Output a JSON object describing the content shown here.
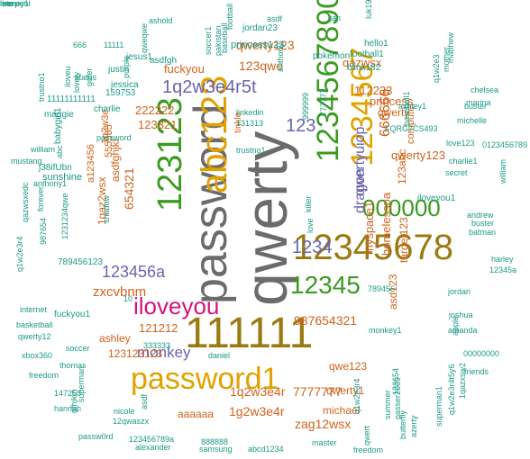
{
  "palette": {
    "gray": "#6b6b6b",
    "gold": "#e1a200",
    "green": "#3a9b20",
    "olive": "#9a7a12",
    "purple": "#6b63b0",
    "orange": "#d2621a",
    "teal": "#1a9a86",
    "magenta": "#d5137a",
    "blue": "#2e64b0"
  },
  "words": [
    {
      "t": "qwerty",
      "c": "gray"
    },
    {
      "t": "password",
      "c": "gray"
    },
    {
      "t": "111111",
      "c": "olive"
    },
    {
      "t": "12345678",
      "c": "olive"
    },
    {
      "t": "1234567890",
      "c": "green"
    },
    {
      "t": "1234567",
      "c": "gold"
    },
    {
      "t": "abc123",
      "c": "gold"
    },
    {
      "t": "123123",
      "c": "green"
    },
    {
      "t": "password1",
      "c": "gold"
    },
    {
      "t": "iloveyou",
      "c": "magenta"
    },
    {
      "t": "000000",
      "c": "green"
    },
    {
      "t": "12345",
      "c": "green"
    },
    {
      "t": "1q2w3e4r5t",
      "c": "purple"
    },
    {
      "t": "qwertyuiop",
      "c": "purple"
    },
    {
      "t": "123456a",
      "c": "purple"
    },
    {
      "t": "1234",
      "c": "purple"
    },
    {
      "t": "123",
      "c": "purple"
    },
    {
      "t": "monkey",
      "c": "purple"
    },
    {
      "t": "dragon",
      "c": "purple"
    },
    {
      "t": "qwerty123",
      "c": "orange"
    },
    {
      "t": "123qwe",
      "c": "orange"
    },
    {
      "t": "fuckyou",
      "c": "orange"
    },
    {
      "t": "qazwsx",
      "c": "orange"
    },
    {
      "t": "222222",
      "c": "orange"
    },
    {
      "t": "123321",
      "c": "orange"
    },
    {
      "t": "654321",
      "c": "orange"
    },
    {
      "t": "zxcvbnm",
      "c": "orange"
    },
    {
      "t": "987654321",
      "c": "orange"
    },
    {
      "t": "121212",
      "c": "orange"
    },
    {
      "t": "1q2w3e4r",
      "c": "orange"
    },
    {
      "t": "1g2w3e4r",
      "c": "orange"
    },
    {
      "t": "7777777",
      "c": "orange"
    },
    {
      "t": "aaaaaa",
      "c": "orange"
    },
    {
      "t": "zag12wsx",
      "c": "orange"
    },
    {
      "t": "qwe123",
      "c": "orange"
    },
    {
      "t": "qwerty1",
      "c": "orange"
    },
    {
      "t": "michael",
      "c": "orange"
    },
    {
      "t": "123123123",
      "c": "orange"
    },
    {
      "t": "ashley",
      "c": "orange"
    },
    {
      "t": "myspace1",
      "c": "orange"
    },
    {
      "t": "homelesspa",
      "c": "orange"
    },
    {
      "t": "princess",
      "c": "orange"
    },
    {
      "t": "112233",
      "c": "orange"
    },
    {
      "t": "qwerty123",
      "c": "orange"
    },
    {
      "t": "666666",
      "c": "orange"
    },
    {
      "t": "qwerty",
      "c": "orange"
    },
    {
      "t": "target123",
      "c": "orange"
    },
    {
      "t": "1qaz2wsx",
      "c": "orange"
    },
    {
      "t": "asdfghjkl",
      "c": "orange"
    },
    {
      "t": "123abc",
      "c": "orange"
    },
    {
      "t": "tinkle",
      "c": "orange"
    },
    {
      "t": "computer",
      "c": "orange"
    },
    {
      "t": "asd123",
      "c": "orange"
    },
    {
      "t": "a123456",
      "c": "orange"
    },
    {
      "t": "555555",
      "c": "orange"
    },
    {
      "t": "1q2w3e",
      "c": "orange"
    },
    {
      "t": "789456123",
      "c": "teal"
    },
    {
      "t": "sunshine",
      "c": "teal"
    },
    {
      "t": "fuckyou1",
      "c": "teal"
    },
    {
      "t": "charlie",
      "c": "teal"
    },
    {
      "t": "iloveyou1",
      "c": "teal"
    },
    {
      "t": "princess123",
      "c": "teal"
    },
    {
      "t": "jordan23",
      "c": "teal"
    },
    {
      "t": "pokemon",
      "c": "teal"
    },
    {
      "t": "football1",
      "c": "teal"
    },
    {
      "t": "blink182",
      "c": "teal"
    },
    {
      "t": "hello1",
      "c": "teal"
    },
    {
      "t": "asdfgh",
      "c": "teal"
    },
    {
      "t": "jesus1",
      "c": "teal"
    },
    {
      "t": "justin",
      "c": "teal"
    },
    {
      "t": "jessica",
      "c": "teal"
    },
    {
      "t": "159753",
      "c": "teal"
    },
    {
      "t": "11111111111",
      "c": "teal"
    },
    {
      "t": "maggie",
      "c": "teal"
    },
    {
      "t": "babygirl1",
      "c": "teal"
    },
    {
      "t": "j38ifUbn",
      "c": "teal"
    },
    {
      "t": "mustang",
      "c": "teal"
    },
    {
      "t": "william",
      "c": "teal"
    },
    {
      "t": "anthony1",
      "c": "teal"
    },
    {
      "t": "forever",
      "c": "teal"
    },
    {
      "t": "987654",
      "c": "teal"
    },
    {
      "t": "1231234qwe",
      "c": "teal"
    },
    {
      "t": "qazwsxedc",
      "c": "teal"
    },
    {
      "t": "q1w2e3r4",
      "c": "teal"
    },
    {
      "t": "basketball",
      "c": "teal"
    },
    {
      "t": "internet",
      "c": "teal"
    },
    {
      "t": "qwerty12",
      "c": "teal"
    },
    {
      "t": "xbox360",
      "c": "teal"
    },
    {
      "t": "freedom",
      "c": "teal"
    },
    {
      "t": "147258",
      "c": "teal"
    },
    {
      "t": "hannah",
      "c": "teal"
    },
    {
      "t": "gfhjkm",
      "c": "teal"
    },
    {
      "t": "superman",
      "c": "teal"
    },
    {
      "t": "thomas",
      "c": "teal"
    },
    {
      "t": "soccer",
      "c": "teal"
    },
    {
      "t": "333333",
      "c": "teal"
    },
    {
      "t": "nicole",
      "c": "teal"
    },
    {
      "t": "12qwaszx",
      "c": "teal"
    },
    {
      "t": "123456789a",
      "c": "teal"
    },
    {
      "t": "passw0rd",
      "c": "teal"
    },
    {
      "t": "alexander",
      "c": "teal"
    },
    {
      "t": "888888",
      "c": "teal"
    },
    {
      "t": "samsung",
      "c": "teal"
    },
    {
      "t": "abcd1234",
      "c": "teal"
    },
    {
      "t": "master",
      "c": "teal"
    },
    {
      "t": "qwert",
      "c": "teal"
    },
    {
      "t": "summer",
      "c": "teal"
    },
    {
      "t": "passer2009",
      "c": "teal"
    },
    {
      "t": "123654",
      "c": "teal"
    },
    {
      "t": "butterfly",
      "c": "teal"
    },
    {
      "t": "azerty",
      "c": "teal"
    },
    {
      "t": "superman1",
      "c": "teal"
    },
    {
      "t": "q1w2e3r4t5y6",
      "c": "teal"
    },
    {
      "t": "1qazxsw2",
      "c": "teal"
    },
    {
      "t": "friends",
      "c": "teal"
    },
    {
      "t": "00000000",
      "c": "teal"
    },
    {
      "t": "amanda",
      "c": "teal"
    },
    {
      "t": "apple",
      "c": "teal"
    },
    {
      "t": "joshua",
      "c": "teal"
    },
    {
      "t": "jordan",
      "c": "teal"
    },
    {
      "t": "monkey1",
      "c": "teal"
    },
    {
      "t": "789456",
      "c": "teal"
    },
    {
      "t": "harley",
      "c": "teal"
    },
    {
      "t": "12345a",
      "c": "teal"
    },
    {
      "t": "batman",
      "c": "teal"
    },
    {
      "t": "buster",
      "c": "teal"
    },
    {
      "t": "andrew",
      "c": "teal"
    },
    {
      "t": "william",
      "c": "teal"
    },
    {
      "t": "secret",
      "c": "teal"
    },
    {
      "t": "charlie1",
      "c": "teal"
    },
    {
      "t": "love123",
      "c": "teal"
    },
    {
      "t": "0123456789",
      "c": "teal"
    },
    {
      "t": "michelle",
      "c": "teal"
    },
    {
      "t": "buster",
      "c": "teal"
    },
    {
      "t": "chelsea",
      "c": "teal"
    },
    {
      "t": "marina",
      "c": "teal"
    },
    {
      "t": "q1w2e3",
      "c": "teal"
    },
    {
      "t": "mother",
      "c": "teal"
    },
    {
      "t": "matthew",
      "c": "teal"
    },
    {
      "t": "baseball1",
      "c": "teal"
    },
    {
      "t": "ashley1",
      "c": "teal"
    },
    {
      "t": "FQRG7CS493",
      "c": "teal"
    },
    {
      "t": "999999",
      "c": "teal"
    },
    {
      "t": "777777",
      "c": "teal"
    },
    {
      "t": "linkedin",
      "c": "teal"
    },
    {
      "t": "131313",
      "c": "teal"
    },
    {
      "t": "trustno1",
      "c": "teal"
    },
    {
      "t": "killer",
      "c": "teal"
    },
    {
      "t": "love",
      "c": "teal"
    },
    {
      "t": "shadow",
      "c": "teal"
    },
    {
      "t": "10",
      "c": "teal"
    },
    {
      "t": "daniel",
      "c": "teal"
    },
    {
      "t": "asdf",
      "c": "teal"
    },
    {
      "t": "666",
      "c": "teal"
    },
    {
      "t": "11111",
      "c": "teal"
    },
    {
      "t": "qweqwe",
      "c": "teal"
    },
    {
      "t": "purple",
      "c": "teal"
    },
    {
      "t": "iloveu",
      "c": "teal"
    },
    {
      "t": "lovely",
      "c": "teal"
    },
    {
      "t": "gofer",
      "c": "teal"
    },
    {
      "t": "ashold",
      "c": "teal"
    },
    {
      "t": "soccer1",
      "c": "teal"
    },
    {
      "t": "pakistan",
      "c": "teal"
    },
    {
      "t": "baseball",
      "c": "teal"
    },
    {
      "t": "football",
      "c": "teal"
    },
    {
      "t": "asdf",
      "c": "teal"
    },
    {
      "t": "jan",
      "c": "teal"
    },
    {
      "t": "anthony",
      "c": "teal"
    },
    {
      "t": "password",
      "c": "teal"
    },
    {
      "t": "abc",
      "c": "teal"
    },
    {
      "t": "trustno1",
      "c": "teal"
    },
    {
      "t": "status",
      "c": "teal"
    },
    {
      "t": "luk19600",
      "c": "teal"
    },
    {
      "t": "freedom",
      "c": "teal"
    },
    {
      "t": "q1w2e3r4",
      "c": "teal"
    },
    {
      "t": "late",
      "c": "teal"
    },
    {
      "t": "liverpool",
      "c": "teal"
    },
    {
      "t": "money1",
      "c": "teal"
    }
  ]
}
